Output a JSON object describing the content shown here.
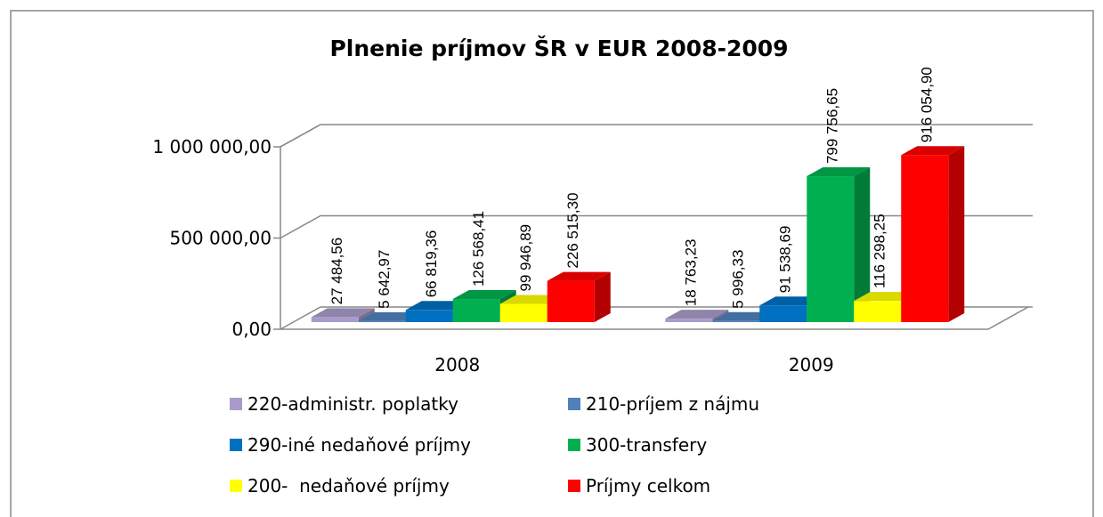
{
  "chart_data": {
    "type": "bar3d",
    "title": "Plnenie príjmov ŠR v EUR 2008-2009",
    "categories": [
      "2008",
      "2009"
    ],
    "series": [
      {
        "name": "220-administr. poplatky",
        "color": "#a99bc9",
        "values": [
          27484.56,
          18763.23
        ],
        "value_labels": [
          "27 484,56",
          "18 763,23"
        ]
      },
      {
        "name": "210-príjem z nájmu",
        "color": "#4f81bd",
        "values": [
          5642.97,
          5996.33
        ],
        "value_labels": [
          "5 642,97",
          "5 996,33"
        ]
      },
      {
        "name": "290-iné nedaňové príjmy",
        "color": "#0070c0",
        "values": [
          66819.36,
          91538.69
        ],
        "value_labels": [
          "66 819,36",
          "91 538,69"
        ]
      },
      {
        "name": "300-transfery",
        "color": "#00b050",
        "values": [
          126568.41,
          799756.65
        ],
        "value_labels": [
          "126 568,41",
          "799 756,65"
        ]
      },
      {
        "name": "200-  nedaňové príjmy",
        "color": "#ffff00",
        "values": [
          99946.89,
          116298.25
        ],
        "value_labels": [
          "99 946,89",
          "116 298,25"
        ]
      },
      {
        "name": "Príjmy celkom",
        "color": "#ff0000",
        "values": [
          226515.3,
          916054.9
        ],
        "value_labels": [
          "226 515,30",
          "916 054,90"
        ]
      }
    ],
    "ylim": [
      0,
      1000000
    ],
    "yticks": [
      {
        "value": 0,
        "label": "0,00"
      },
      {
        "value": 500000,
        "label": "500 000,00"
      },
      {
        "value": 1000000,
        "label": "1 000 000,00"
      }
    ],
    "grid": true,
    "legend": "bottom"
  }
}
